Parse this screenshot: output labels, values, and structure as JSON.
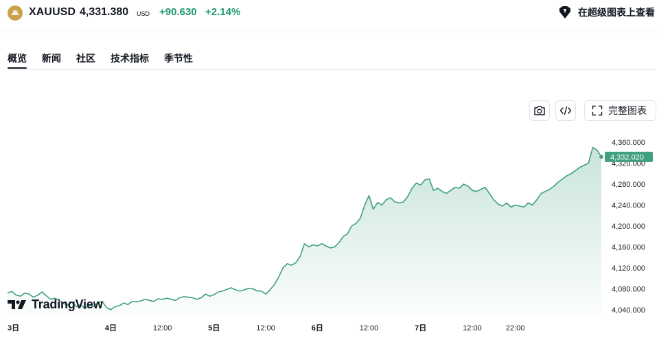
{
  "header": {
    "symbol": "XAUUSD",
    "price": "4,331.380",
    "currency": "USD",
    "change_abs": "+90.630",
    "change_pct": "+2.14%",
    "supercharts_label": "在超级图表上查看"
  },
  "tabs": [
    {
      "label": "概览",
      "active": true
    },
    {
      "label": "新闻",
      "active": false
    },
    {
      "label": "社区",
      "active": false
    },
    {
      "label": "技术指标",
      "active": false
    },
    {
      "label": "季节性",
      "active": false
    }
  ],
  "toolbar": {
    "camera_icon": "camera-icon",
    "embed_icon": "code-brackets-icon",
    "fullchart_label": "完整图表"
  },
  "watermark": "TradingView",
  "colors": {
    "line": "#3f9f7f",
    "positive": "#1f9a6b",
    "last_price_bg": "#3f9f7f",
    "logo": "#c9a14a"
  },
  "chart_data": {
    "type": "area",
    "y_ticks": [
      "4,360.000",
      "4,320.000",
      "4,280.000",
      "4,240.000",
      "4,200.000",
      "4,160.000",
      "4,120.000",
      "4,080.000",
      "4,040.000"
    ],
    "ylim": [
      4040,
      4360
    ],
    "x_ticks": [
      {
        "label": "3日",
        "idx": 0,
        "bold": true
      },
      {
        "label": "4日",
        "idx": 24,
        "bold": true
      },
      {
        "label": "12:00",
        "idx": 36,
        "bold": false
      },
      {
        "label": "5日",
        "idx": 48,
        "bold": true
      },
      {
        "label": "12:00",
        "idx": 60,
        "bold": false
      },
      {
        "label": "6日",
        "idx": 72,
        "bold": true
      },
      {
        "label": "12:00",
        "idx": 84,
        "bold": false
      },
      {
        "label": "7日",
        "idx": 96,
        "bold": true
      },
      {
        "label": "12:00",
        "idx": 108,
        "bold": false
      },
      {
        "label": "22:00",
        "idx": 118,
        "bold": false
      }
    ],
    "last_price": "4,332.020",
    "last_value": 4332.02,
    "values": [
      4072,
      4075,
      4068,
      4066,
      4072,
      4070,
      4064,
      4068,
      4074,
      4067,
      4060,
      4062,
      4058,
      4052,
      4049,
      4055,
      4046,
      4050,
      4042,
      4049,
      4047,
      4053,
      4056,
      4044,
      4040,
      4046,
      4048,
      4053,
      4050,
      4056,
      4055,
      4057,
      4060,
      4058,
      4056,
      4061,
      4060,
      4062,
      4060,
      4058,
      4063,
      4065,
      4064,
      4063,
      4060,
      4063,
      4070,
      4066,
      4069,
      4074,
      4076,
      4079,
      4082,
      4078,
      4076,
      4078,
      4081,
      4080,
      4076,
      4076,
      4070,
      4078,
      4088,
      4102,
      4120,
      4128,
      4125,
      4130,
      4142,
      4166,
      4160,
      4164,
      4162,
      4166,
      4162,
      4158,
      4160,
      4168,
      4180,
      4185,
      4200,
      4205,
      4215,
      4240,
      4258,
      4232,
      4245,
      4240,
      4250,
      4254,
      4246,
      4244,
      4246,
      4256,
      4272,
      4282,
      4278,
      4288,
      4290,
      4268,
      4272,
      4266,
      4262,
      4268,
      4274,
      4272,
      4280,
      4276,
      4268,
      4266,
      4270,
      4274,
      4262,
      4250,
      4242,
      4238,
      4244,
      4236,
      4240,
      4238,
      4236,
      4244,
      4240,
      4250,
      4262,
      4266,
      4270,
      4276,
      4284,
      4290,
      4296,
      4300,
      4306,
      4312,
      4316,
      4320,
      4350,
      4345,
      4332
    ]
  }
}
